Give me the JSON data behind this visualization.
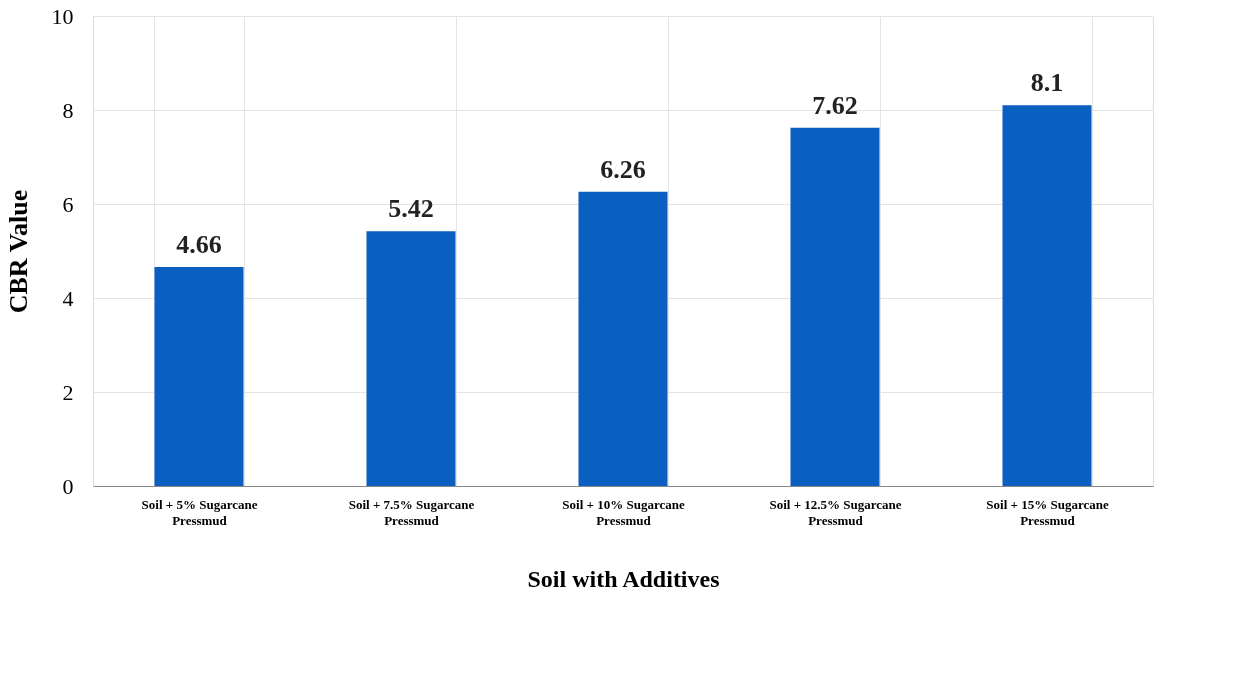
{
  "chart_data": {
    "type": "bar",
    "xlabel": "Soil with Additives",
    "ylabel": "CBR Value",
    "categories": [
      "Soil + 5% Sugarcane Pressmud",
      "Soil + 7.5% Sugarcane Pressmud",
      "Soil + 10% Sugarcane Pressmud",
      "Soil + 12.5% Sugarcane Pressmud",
      "Soil + 15% Sugarcane Pressmud"
    ],
    "values": [
      4.66,
      5.42,
      6.26,
      7.62,
      8.1
    ],
    "color": "#0a5fc0",
    "ylim": [
      0,
      10
    ],
    "yticks": [
      0,
      2,
      4,
      6,
      8,
      10
    ],
    "grid": true,
    "data_labels": true
  }
}
